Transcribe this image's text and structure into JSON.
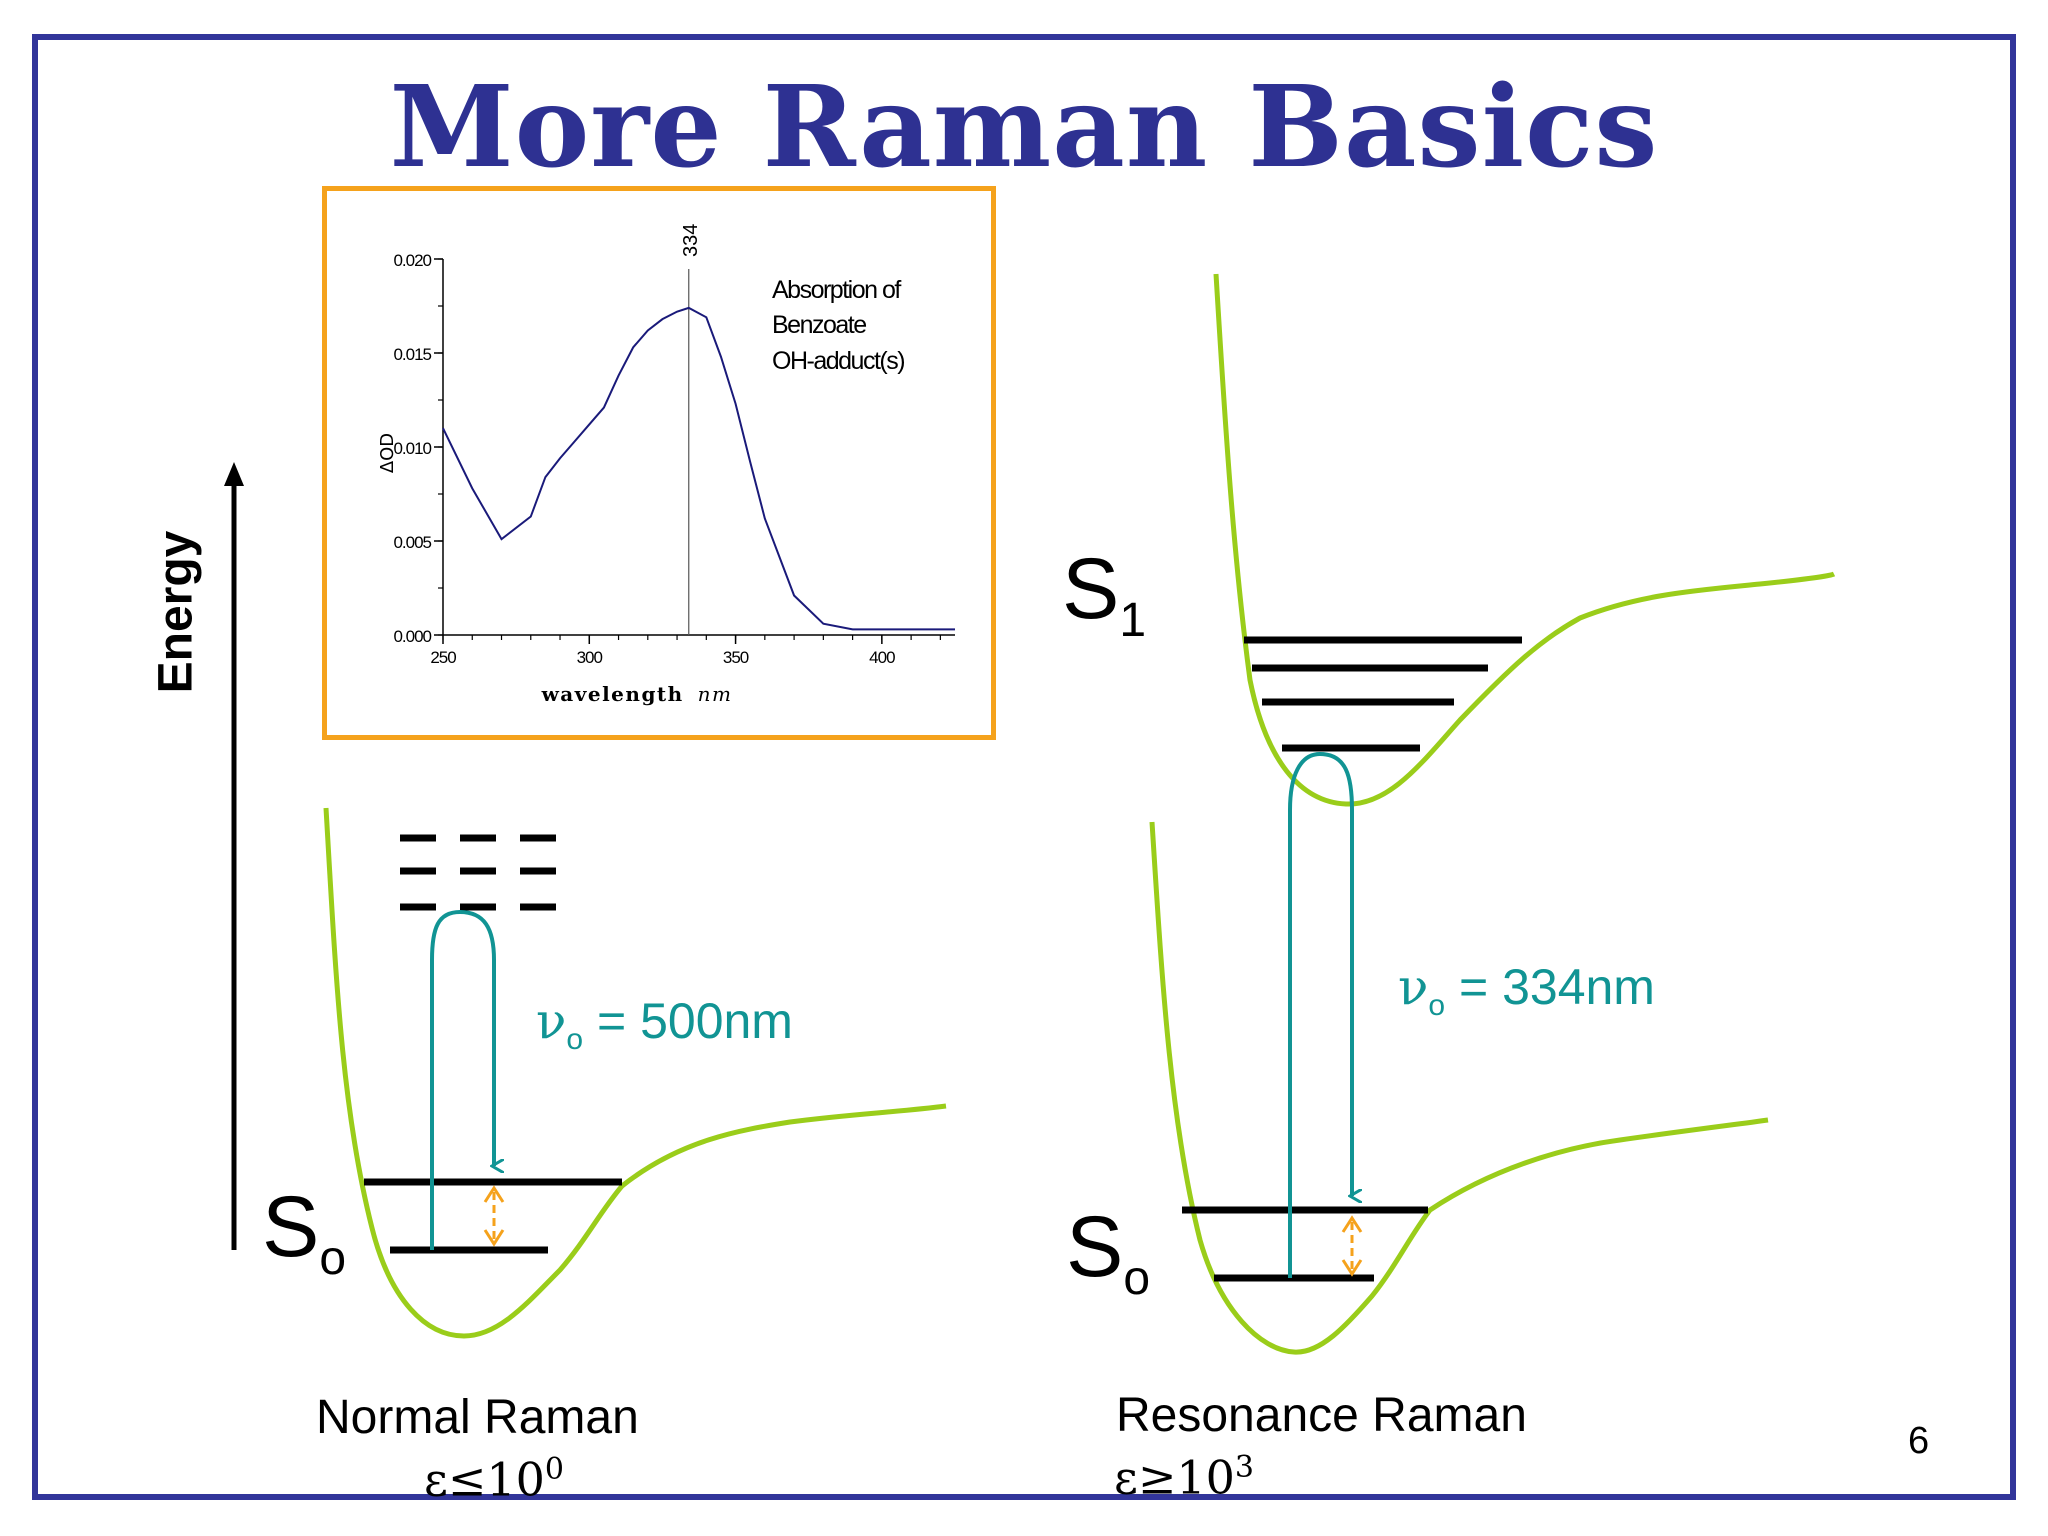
{
  "slide": {
    "title": "More Raman Basics",
    "page_number": "6",
    "energy_axis_label": "Energy"
  },
  "normal_raman": {
    "caption": "Normal Raman",
    "epsilon_symbol": "ε≤10",
    "epsilon_exponent": "0",
    "ground_state_letter": "S",
    "ground_state_sub": "o",
    "nu_symbol": "ν",
    "nu_sub": "o",
    "nu_value": " = 500nm"
  },
  "resonance_raman": {
    "caption": "Resonance Raman",
    "epsilon_symbol": "ε≥10",
    "epsilon_exponent": "3",
    "ground_state_letter": "S",
    "ground_state_sub": "o",
    "excited_state_letter": "S",
    "excited_state_sub": "1",
    "nu_symbol": "ν",
    "nu_sub": "o",
    "nu_value": " = 334nm"
  },
  "colors": {
    "frame": "#32359a",
    "title": "#2e3192",
    "inset_border": "#f5a21c",
    "potential_curve": "#9acd1a",
    "transition": "#119494",
    "vibrational_arrow": "#f5a21c",
    "spectrum_line": "#1a1a7a"
  },
  "chart_data": {
    "type": "line",
    "annotation_text": "Absorption of Benzoate OH-adduct(s)",
    "annotation_lines": [
      "Absorption of",
      "Benzoate",
      "OH-adduct(s)"
    ],
    "marker_label": "334",
    "marker_x": 334,
    "xlabel_main": "wavelength",
    "xlabel_unit": "nm",
    "ylabel": "ΔOD",
    "xlim": [
      250,
      425
    ],
    "ylim": [
      0,
      0.02
    ],
    "x_ticks": [
      250,
      300,
      350,
      400
    ],
    "x_tick_labels": [
      "250",
      "300",
      "350",
      "400"
    ],
    "y_ticks": [
      0,
      0.005,
      0.01,
      0.015,
      0.02
    ],
    "y_tick_labels": [
      "0.000",
      "0.005",
      "0.010",
      "0.015",
      "0.020"
    ],
    "x": [
      250,
      260,
      270,
      280,
      285,
      290,
      295,
      300,
      305,
      310,
      315,
      320,
      325,
      330,
      334,
      340,
      345,
      350,
      355,
      360,
      370,
      380,
      390,
      400,
      425
    ],
    "y": [
      0.011,
      0.0078,
      0.0051,
      0.0063,
      0.0084,
      0.0094,
      0.0103,
      0.0112,
      0.0121,
      0.0138,
      0.0153,
      0.0162,
      0.0168,
      0.0172,
      0.0174,
      0.0169,
      0.0148,
      0.0123,
      0.0092,
      0.0062,
      0.0021,
      0.0006,
      0.0003,
      0.0003,
      0.0003
    ]
  }
}
